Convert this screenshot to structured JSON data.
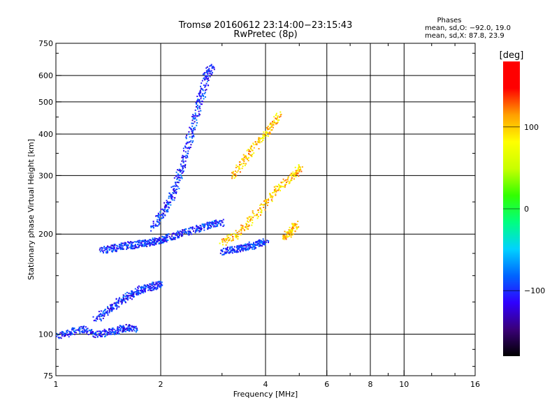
{
  "chart_data": {
    "type": "scatter",
    "title": "Tromsø 20160612 23:14:00−23:15:43",
    "subtitle": "RwPretec (8p)",
    "xlabel": "Frequency [MHz]",
    "ylabel": "Stationary phase Virtual Height [km]",
    "x_scale": "log",
    "y_scale": "log",
    "xlim": [
      1,
      16
    ],
    "ylim": [
      75,
      750
    ],
    "x_ticks": [
      1,
      2,
      4,
      6,
      8,
      10,
      16
    ],
    "x_tick_labels": [
      "1",
      "2",
      "4",
      "6",
      "8",
      "10",
      "16"
    ],
    "x_grid_lines": [
      2,
      4,
      6,
      8,
      10
    ],
    "y_ticks": [
      75,
      100,
      200,
      300,
      400,
      500,
      600,
      750
    ],
    "y_tick_labels": [
      "75",
      "100",
      "200",
      "300",
      "400",
      "500",
      "600",
      "750"
    ],
    "y_grid_lines": [
      100,
      200,
      300,
      400,
      500,
      600
    ],
    "grid": true,
    "legend": {
      "title": "Phases",
      "lines": [
        "mean, sd,O: −92.0, 19.0",
        "mean, sd,X: 87.8, 23.9"
      ],
      "position": "top-right"
    },
    "colorbar": {
      "label": "[deg]",
      "range": [
        -180,
        180
      ],
      "ticks": [
        100,
        0,
        -100
      ],
      "tick_labels": [
        "100",
        "0",
        "−100"
      ],
      "colors": [
        "#000000",
        "#3a0078",
        "#3000ff",
        "#0064ff",
        "#00d2ff",
        "#00ff80",
        "#32ff00",
        "#c8ff00",
        "#ffff00",
        "#ffa000",
        "#ff0000",
        "#ff0000"
      ]
    },
    "series": [
      {
        "mode": "O",
        "phase_color_value": -100,
        "traces": [
          {
            "x": [
              1.0,
              1.1,
              1.2,
              1.3,
              1.4,
              1.5,
              1.6,
              1.7
            ],
            "y": [
              99,
              102,
              104,
              100,
              102,
              103,
              105,
              104
            ]
          },
          {
            "x": [
              1.3,
              1.4,
              1.5,
              1.6,
              1.7,
              1.8,
              1.9,
              2.0
            ],
            "y": [
              112,
              118,
              125,
              130,
              135,
              138,
              140,
              142
            ]
          },
          {
            "x": [
              1.35,
              1.45,
              1.55,
              1.65,
              1.75,
              1.85,
              1.95,
              2.05,
              2.2,
              2.4,
              2.6,
              2.8,
              3.0
            ],
            "y": [
              180,
              182,
              185,
              186,
              188,
              190,
              192,
              195,
              200,
              205,
              210,
              215,
              218
            ]
          },
          {
            "x": [
              1.9,
              2.0,
              2.1,
              2.2,
              2.3,
              2.4,
              2.5,
              2.6,
              2.7,
              2.8
            ],
            "y": [
              210,
              230,
              250,
              280,
              320,
              380,
              450,
              520,
              600,
              640
            ]
          },
          {
            "x": [
              3.0,
              3.2,
              3.4,
              3.6,
              3.8,
              4.0
            ],
            "y": [
              178,
              180,
              182,
              185,
              188,
              190
            ]
          }
        ]
      },
      {
        "mode": "X",
        "phase_color_value": 100,
        "traces": [
          {
            "x": [
              3.0,
              3.3,
              3.6,
              4.0,
              4.4,
              4.8,
              5.0
            ],
            "y": [
              190,
              200,
              220,
              250,
              280,
              300,
              320
            ]
          },
          {
            "x": [
              3.2,
              3.5,
              3.8,
              4.1,
              4.4
            ],
            "y": [
              300,
              340,
              380,
              420,
              460
            ]
          },
          {
            "x": [
              4.5,
              4.7,
              4.9
            ],
            "y": [
              195,
              205,
              215
            ]
          }
        ]
      }
    ]
  }
}
